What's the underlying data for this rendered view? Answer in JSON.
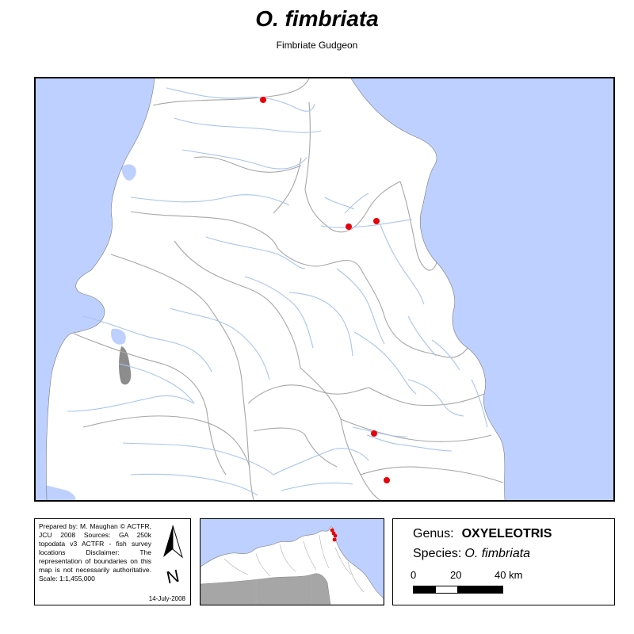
{
  "title": "O. fimbriata",
  "subtitle": "Fimbriate Gudgeon",
  "colors": {
    "sea": "#BDD0FF",
    "land": "#FFFFFF",
    "river": "#A9C4EE",
    "boundary": "#A6A6A6",
    "record_point": "#E8000B",
    "lake": "#8C8C8C"
  },
  "credits": {
    "text": "Prepared by: M. Maughan © ACTFR, JCU 2008 Sources: GA 250k topodata v3 ACTFR - fish survey locations Disclaimer: The representation of boundaries on this map is not necessarily authoritative. Scale: 1:1,455,000",
    "date": "14-July-2008"
  },
  "north_arrow": {
    "icon": "north-arrow-icon",
    "label": "N"
  },
  "info": {
    "genus_label": "Genus:",
    "genus_value": "OXYELEOTRIS",
    "species_label": "Species:",
    "species_value": "O. fimbriata"
  },
  "scale": {
    "labels": [
      "0",
      "20",
      "40 km"
    ],
    "unit": "km"
  },
  "record_count": 6
}
